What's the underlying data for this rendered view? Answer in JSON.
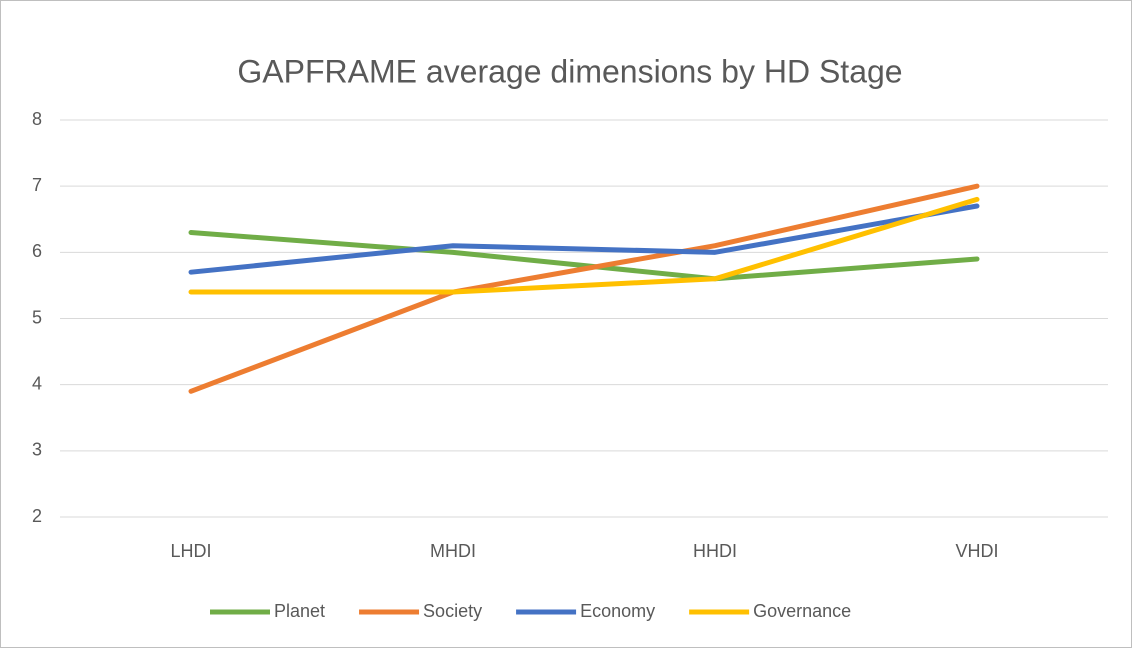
{
  "chart_data": {
    "type": "line",
    "title": "GAPFRAME average dimensions by HD Stage",
    "categories": [
      "LHDI",
      "MHDI",
      "HHDI",
      "VHDI"
    ],
    "series": [
      {
        "name": "Planet",
        "color": "#70ad47",
        "values": [
          6.3,
          6.0,
          5.6,
          5.9
        ]
      },
      {
        "name": "Society",
        "color": "#ed7d31",
        "values": [
          3.9,
          5.4,
          6.1,
          7.0
        ]
      },
      {
        "name": "Economy",
        "color": "#4472c4",
        "values": [
          5.7,
          6.1,
          6.0,
          6.7
        ]
      },
      {
        "name": "Governance",
        "color": "#ffc000",
        "values": [
          5.4,
          5.4,
          5.6,
          6.8
        ]
      }
    ],
    "ylim": [
      2,
      8
    ],
    "yticks": [
      2,
      3,
      4,
      5,
      6,
      7,
      8
    ],
    "grid": true,
    "legend": "bottom"
  }
}
